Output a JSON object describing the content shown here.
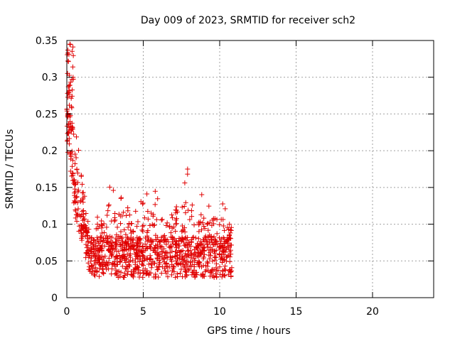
{
  "chart_data": {
    "type": "scatter",
    "title": "Day 009 of 2023, SRMTID for receiver sch2",
    "xlabel": "GPS time / hours",
    "ylabel": "SRMTID / TECUs",
    "xlim": [
      0,
      24
    ],
    "ylim": [
      0,
      0.35
    ],
    "xticks": [
      "0",
      "5",
      "10",
      "15",
      "20"
    ],
    "yticks": [
      "0",
      "0.05",
      "0.1",
      "0.15",
      "0.2",
      "0.25",
      "0.3",
      "0.35"
    ],
    "grid": true,
    "marker": "plus",
    "color": "#e00000",
    "x_range_of_points": [
      0,
      10.8
    ],
    "envelope": [
      {
        "x": 0.0,
        "y": 0.34
      },
      {
        "x": 0.2,
        "y": 0.33
      },
      {
        "x": 0.5,
        "y": 0.23
      },
      {
        "x": 1.0,
        "y": 0.19
      },
      {
        "x": 1.5,
        "y": 0.1
      },
      {
        "x": 2.0,
        "y": 0.11
      },
      {
        "x": 2.8,
        "y": 0.16
      },
      {
        "x": 3.5,
        "y": 0.14
      },
      {
        "x": 4.5,
        "y": 0.12
      },
      {
        "x": 5.5,
        "y": 0.155
      },
      {
        "x": 6.5,
        "y": 0.12
      },
      {
        "x": 7.9,
        "y": 0.175
      },
      {
        "x": 9.3,
        "y": 0.135
      },
      {
        "x": 10.8,
        "y": 0.125
      }
    ],
    "annotations": {
      "peak": {
        "x": 0.2,
        "y": 0.345
      },
      "later_peak": {
        "x": 7.9,
        "y": 0.175
      }
    }
  }
}
